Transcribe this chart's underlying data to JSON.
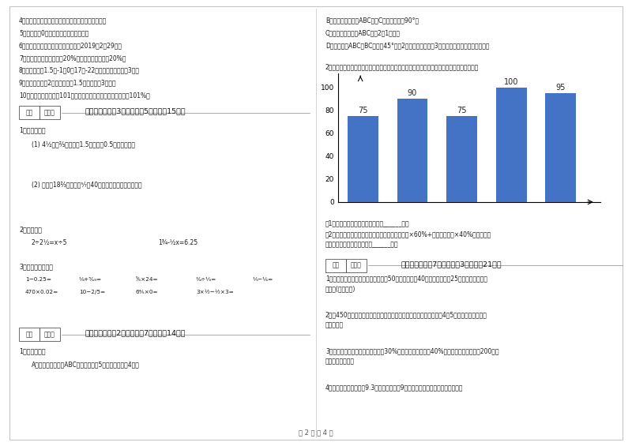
{
  "page_bg": "#ffffff",
  "bar_values": [
    75,
    90,
    75,
    100,
    95
  ],
  "bar_color": "#4472c4",
  "bar_ylim": [
    0,
    110
  ],
  "bar_yticks": [
    0,
    20,
    40,
    60,
    80,
    100
  ],
  "items_4_10": [
    "4．（　　）圆柱的体积一定，底面积和高成反比例。",
    "5．（　　）0既不是正数，也不是负数。",
    "6．（　　）一份合同书的签订日期是2019年2月29日。",
    "7．（　　）甲数比乙数少20%，那么乙数比甲数多20%。",
    "8．（　　）在1.5，-1，0，17，-22这五个数中，负数有3个。",
    "9．（　　）零下2摄氏度与零上1.5摄氏度相差3摄氏。",
    "10．（　　）李阿姨做101个零件，全部合格，合格率就达到了101%。"
  ],
  "right_top": [
    "B、将下面的三角形ABC，绕C点顺时针旋转90°。",
    "C、将下面的三角形ABC，按2：1放大。",
    "D、在三角形ABC的BC面偏东45°方向2厘米处画一个直径3厘米的圆（长度为实际长度）。"
  ],
  "score_labels": [
    "得分",
    "评卷人"
  ],
  "page_num": "第 2 页 共 4 页"
}
